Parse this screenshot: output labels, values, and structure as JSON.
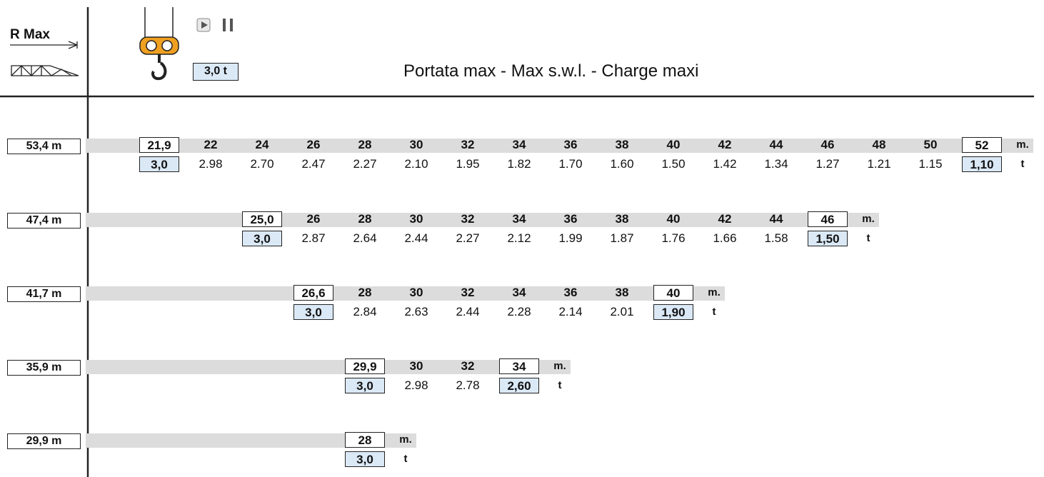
{
  "header": {
    "r_max": "R Max",
    "hook_load": "3,0 t",
    "title": "Portata max - Max s.w.l. - Charge maxi"
  },
  "rows": [
    {
      "label": "53,4 m",
      "radii": [
        "21,9",
        "22",
        "24",
        "26",
        "28",
        "30",
        "32",
        "34",
        "36",
        "38",
        "40",
        "42",
        "44",
        "46",
        "48",
        "50",
        "52"
      ],
      "loads": [
        "3,0",
        "2.98",
        "2.70",
        "2.47",
        "2.27",
        "2.10",
        "1.95",
        "1.82",
        "1.70",
        "1.60",
        "1.50",
        "1.42",
        "1.34",
        "1.27",
        "1.21",
        "1.15",
        "1,10"
      ],
      "radius_unit": "m.",
      "load_unit": "t"
    },
    {
      "label": "47,4 m",
      "radii": [
        "25,0",
        "26",
        "28",
        "30",
        "32",
        "34",
        "36",
        "38",
        "40",
        "42",
        "44",
        "46"
      ],
      "loads": [
        "3,0",
        "2.87",
        "2.64",
        "2.44",
        "2.27",
        "2.12",
        "1.99",
        "1.87",
        "1.76",
        "1.66",
        "1.58",
        "1,50"
      ],
      "radius_unit": "m.",
      "load_unit": "t"
    },
    {
      "label": "41,7 m",
      "radii": [
        "26,6",
        "28",
        "30",
        "32",
        "34",
        "36",
        "38",
        "40"
      ],
      "loads": [
        "3,0",
        "2.84",
        "2.63",
        "2.44",
        "2.28",
        "2.14",
        "2.01",
        "1,90"
      ],
      "radius_unit": "m.",
      "load_unit": "t"
    },
    {
      "label": "35,9 m",
      "radii": [
        "29,9",
        "30",
        "32",
        "34"
      ],
      "loads": [
        "3,0",
        "2.98",
        "2.78",
        "2,60"
      ],
      "radius_unit": "m.",
      "load_unit": "t"
    },
    {
      "label": "29,9 m",
      "radii": [
        "28"
      ],
      "loads": [
        "3,0"
      ],
      "radius_unit": "m.",
      "load_unit": "t"
    }
  ]
}
